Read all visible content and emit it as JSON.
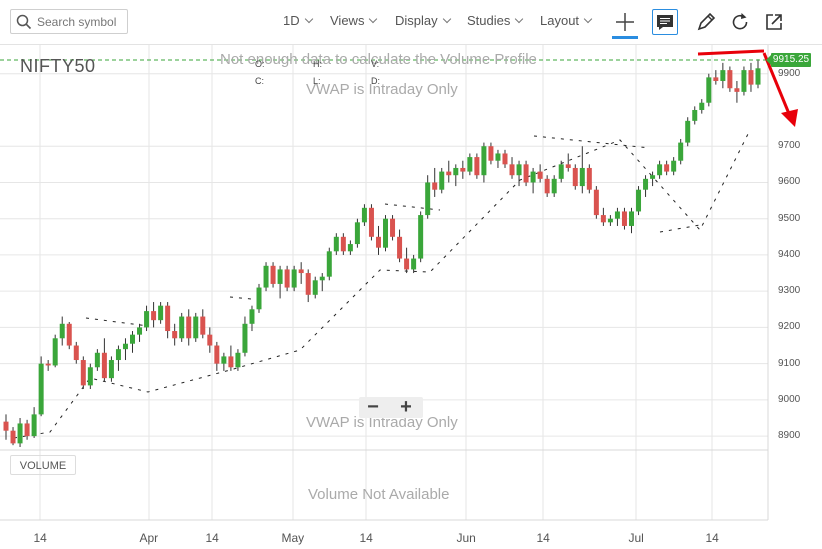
{
  "toolbar": {
    "search_placeholder": "Search symbol",
    "menus": [
      "1D",
      "Views",
      "Display",
      "Studies",
      "Layout"
    ],
    "icons": [
      "search-icon",
      "crosshair-icon",
      "annotation-icon",
      "pencil-icon",
      "reset-icon",
      "popout-icon"
    ]
  },
  "chart": {
    "symbol": "NIFTY50",
    "ohlc_labels": {
      "o": "O:",
      "h": "H:",
      "v": "V:",
      "c": "C:",
      "l": "L:",
      "d": "D:"
    },
    "volume_profile_msg": "Not enough data to calculate the Volume Profile",
    "vwap_msg_top": "VWAP is Intraday Only",
    "vwap_msg_bottom": "VWAP is Intraday Only",
    "volume_msg": "Volume Not Available",
    "volume_badge": "VOLUME",
    "last_price": "9915.25",
    "zoom_out": "−",
    "zoom_in": "+",
    "colors": {
      "up": "#3aa63a",
      "down": "#d9534f",
      "grid": "#e6e6e6",
      "annotation": "#e8000a",
      "last_price_line": "#3aa63a"
    }
  },
  "chart_data": {
    "type": "candlestick",
    "price_ticks": [
      8900,
      9000,
      9100,
      9200,
      9300,
      9400,
      9500,
      9600,
      9700,
      9900
    ],
    "date_ticks": [
      "14",
      "Apr",
      "14",
      "May",
      "14",
      "Jun",
      "14",
      "Jul",
      "14"
    ],
    "ylim": [
      8870,
      9960
    ],
    "candles": [
      [
        8940,
        8960,
        8890,
        8915
      ],
      [
        8915,
        8925,
        8875,
        8880
      ],
      [
        8880,
        8950,
        8870,
        8935
      ],
      [
        8935,
        8945,
        8890,
        8900
      ],
      [
        8900,
        8980,
        8895,
        8960
      ],
      [
        8960,
        9120,
        8955,
        9100
      ],
      [
        9100,
        9110,
        9080,
        9095
      ],
      [
        9095,
        9180,
        9090,
        9170
      ],
      [
        9170,
        9230,
        9150,
        9210
      ],
      [
        9210,
        9215,
        9140,
        9150
      ],
      [
        9150,
        9160,
        9100,
        9110
      ],
      [
        9110,
        9120,
        9030,
        9040
      ],
      [
        9040,
        9100,
        9030,
        9090
      ],
      [
        9090,
        9140,
        9080,
        9130
      ],
      [
        9130,
        9170,
        9050,
        9060
      ],
      [
        9060,
        9120,
        9050,
        9110
      ],
      [
        9110,
        9150,
        9080,
        9140
      ],
      [
        9140,
        9170,
        9110,
        9155
      ],
      [
        9155,
        9190,
        9130,
        9180
      ],
      [
        9180,
        9210,
        9160,
        9200
      ],
      [
        9200,
        9260,
        9190,
        9245
      ],
      [
        9245,
        9270,
        9200,
        9220
      ],
      [
        9220,
        9270,
        9210,
        9260
      ],
      [
        9260,
        9270,
        9170,
        9190
      ],
      [
        9190,
        9210,
        9150,
        9170
      ],
      [
        9170,
        9240,
        9160,
        9230
      ],
      [
        9230,
        9250,
        9150,
        9170
      ],
      [
        9170,
        9240,
        9160,
        9230
      ],
      [
        9230,
        9250,
        9170,
        9180
      ],
      [
        9180,
        9200,
        9130,
        9150
      ],
      [
        9150,
        9160,
        9080,
        9100
      ],
      [
        9100,
        9130,
        9080,
        9120
      ],
      [
        9120,
        9150,
        9080,
        9090
      ],
      [
        9090,
        9140,
        9080,
        9130
      ],
      [
        9130,
        9230,
        9120,
        9210
      ],
      [
        9210,
        9260,
        9190,
        9250
      ],
      [
        9250,
        9320,
        9240,
        9310
      ],
      [
        9310,
        9380,
        9300,
        9370
      ],
      [
        9370,
        9380,
        9310,
        9320
      ],
      [
        9320,
        9370,
        9280,
        9360
      ],
      [
        9360,
        9370,
        9300,
        9310
      ],
      [
        9310,
        9370,
        9300,
        9360
      ],
      [
        9360,
        9380,
        9320,
        9350
      ],
      [
        9350,
        9360,
        9270,
        9290
      ],
      [
        9290,
        9340,
        9280,
        9330
      ],
      [
        9330,
        9350,
        9300,
        9340
      ],
      [
        9340,
        9420,
        9330,
        9410
      ],
      [
        9410,
        9460,
        9400,
        9450
      ],
      [
        9450,
        9460,
        9400,
        9410
      ],
      [
        9410,
        9440,
        9400,
        9430
      ],
      [
        9430,
        9500,
        9420,
        9490
      ],
      [
        9490,
        9540,
        9480,
        9530
      ],
      [
        9530,
        9540,
        9440,
        9450
      ],
      [
        9450,
        9480,
        9400,
        9420
      ],
      [
        9420,
        9510,
        9410,
        9500
      ],
      [
        9500,
        9510,
        9440,
        9450
      ],
      [
        9450,
        9470,
        9380,
        9390
      ],
      [
        9390,
        9420,
        9350,
        9360
      ],
      [
        9360,
        9400,
        9350,
        9390
      ],
      [
        9390,
        9520,
        9380,
        9510
      ],
      [
        9510,
        9620,
        9500,
        9600
      ],
      [
        9600,
        9640,
        9560,
        9580
      ],
      [
        9580,
        9640,
        9570,
        9630
      ],
      [
        9630,
        9660,
        9600,
        9620
      ],
      [
        9620,
        9650,
        9590,
        9640
      ],
      [
        9640,
        9660,
        9610,
        9630
      ],
      [
        9630,
        9680,
        9620,
        9670
      ],
      [
        9670,
        9680,
        9610,
        9620
      ],
      [
        9620,
        9710,
        9600,
        9700
      ],
      [
        9700,
        9710,
        9650,
        9660
      ],
      [
        9660,
        9690,
        9640,
        9680
      ],
      [
        9680,
        9690,
        9640,
        9650
      ],
      [
        9650,
        9670,
        9610,
        9620
      ],
      [
        9620,
        9660,
        9590,
        9650
      ],
      [
        9650,
        9660,
        9590,
        9600
      ],
      [
        9600,
        9640,
        9570,
        9630
      ],
      [
        9630,
        9650,
        9600,
        9610
      ],
      [
        9610,
        9620,
        9560,
        9570
      ],
      [
        9570,
        9620,
        9560,
        9610
      ],
      [
        9610,
        9660,
        9600,
        9650
      ],
      [
        9650,
        9680,
        9630,
        9640
      ],
      [
        9640,
        9650,
        9580,
        9590
      ],
      [
        9590,
        9700,
        9570,
        9640
      ],
      [
        9640,
        9650,
        9570,
        9580
      ],
      [
        9580,
        9590,
        9500,
        9510
      ],
      [
        9510,
        9530,
        9480,
        9490
      ],
      [
        9490,
        9510,
        9480,
        9500
      ],
      [
        9500,
        9530,
        9480,
        9520
      ],
      [
        9520,
        9530,
        9470,
        9480
      ],
      [
        9480,
        9530,
        9460,
        9520
      ],
      [
        9520,
        9590,
        9510,
        9580
      ],
      [
        9580,
        9620,
        9560,
        9610
      ],
      [
        9610,
        9630,
        9590,
        9620
      ],
      [
        9620,
        9660,
        9610,
        9650
      ],
      [
        9650,
        9660,
        9620,
        9630
      ],
      [
        9630,
        9670,
        9620,
        9660
      ],
      [
        9660,
        9720,
        9650,
        9710
      ],
      [
        9710,
        9780,
        9700,
        9770
      ],
      [
        9770,
        9810,
        9760,
        9800
      ],
      [
        9800,
        9830,
        9790,
        9820
      ],
      [
        9820,
        9900,
        9810,
        9890
      ],
      [
        9890,
        9910,
        9870,
        9880
      ],
      [
        9880,
        9930,
        9860,
        9910
      ],
      [
        9910,
        9920,
        9850,
        9860
      ],
      [
        9860,
        9880,
        9820,
        9850
      ],
      [
        9850,
        9920,
        9840,
        9910
      ],
      [
        9910,
        9930,
        9850,
        9870
      ],
      [
        9870,
        9940,
        9860,
        9915
      ]
    ]
  }
}
